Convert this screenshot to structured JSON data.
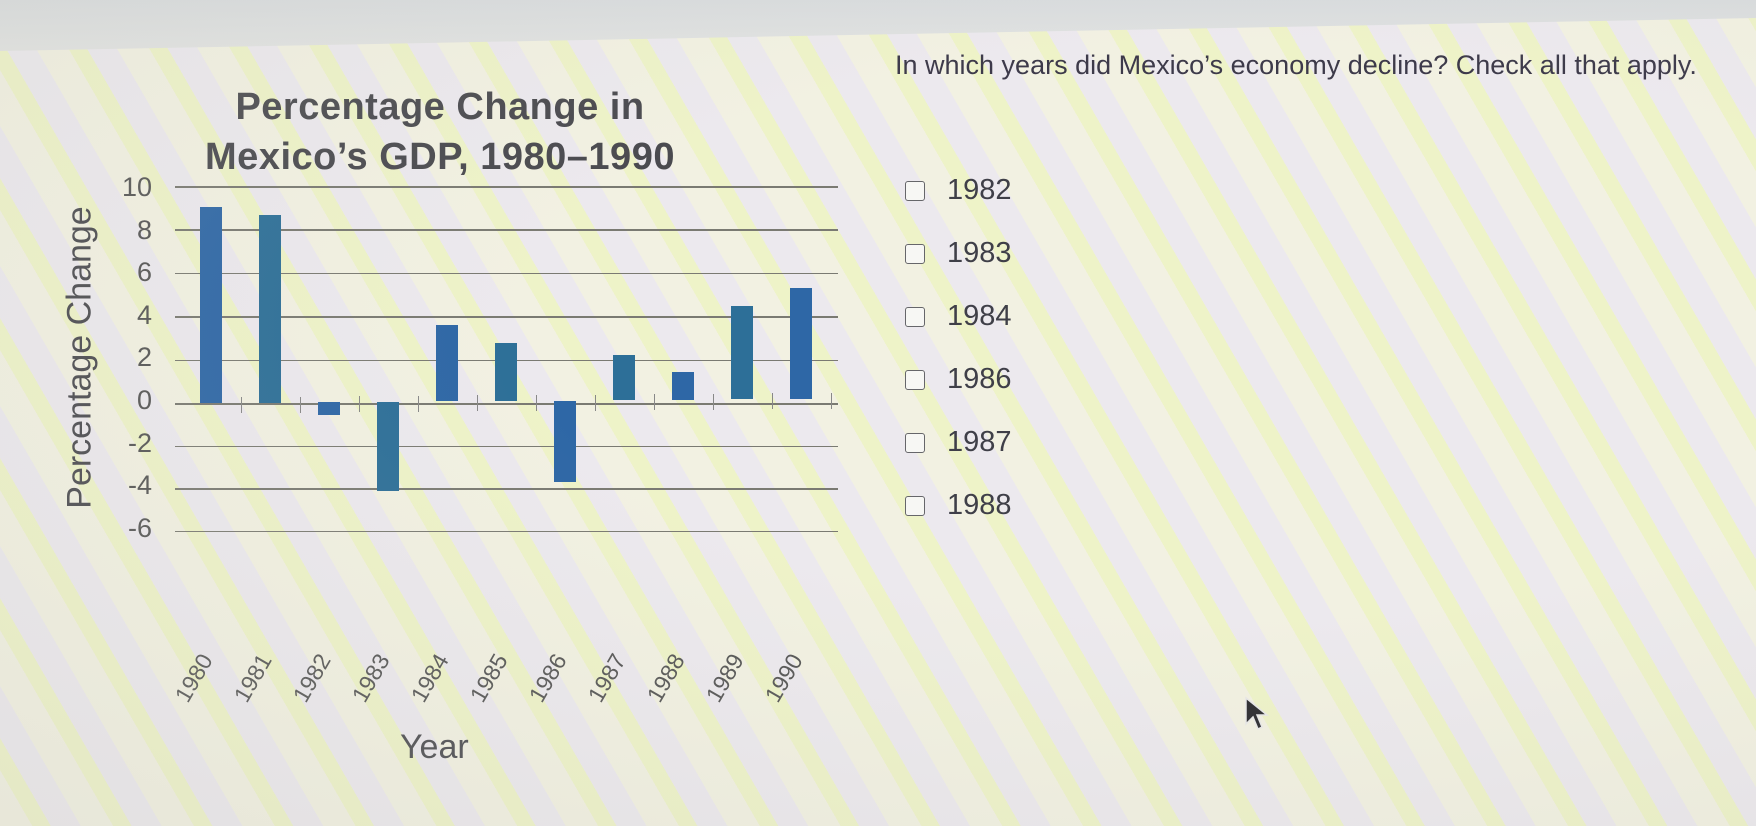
{
  "chart": {
    "title_line1": "Percentage Change in",
    "title_line2": "Mexico’s GDP, 1980–1990",
    "ylabel": "Percentage Change",
    "xlabel": "Year",
    "y_ticks": [
      "10",
      "8",
      "6",
      "4",
      "2",
      "0",
      "-2",
      "-4",
      "-6"
    ],
    "x_ticks": [
      "1980",
      "1981",
      "1982",
      "1983",
      "1984",
      "1985",
      "1986",
      "1987",
      "1988",
      "1989",
      "1990"
    ],
    "bar_color": "#2e67a6"
  },
  "question": {
    "text": "In which years did Mexico’s economy decline? Check all that apply.",
    "options": [
      {
        "label": "1982",
        "checked": false
      },
      {
        "label": "1983",
        "checked": false
      },
      {
        "label": "1984",
        "checked": false
      },
      {
        "label": "1986",
        "checked": false
      },
      {
        "label": "1987",
        "checked": false
      },
      {
        "label": "1988",
        "checked": false
      }
    ]
  },
  "chart_data": {
    "type": "bar",
    "title": "Percentage Change in Mexico’s GDP, 1980–1990",
    "xlabel": "Year",
    "ylabel": "Percentage Change",
    "categories": [
      "1980",
      "1981",
      "1982",
      "1983",
      "1984",
      "1985",
      "1986",
      "1987",
      "1988",
      "1989",
      "1990"
    ],
    "values": [
      9.2,
      8.8,
      -0.6,
      -4.2,
      3.6,
      2.7,
      -3.8,
      2.1,
      1.3,
      4.4,
      5.2
    ],
    "ylim": [
      -6,
      10
    ],
    "y_ticks": [
      -6,
      -4,
      -2,
      0,
      2,
      4,
      6,
      8,
      10
    ],
    "grid": true,
    "legend": null
  }
}
